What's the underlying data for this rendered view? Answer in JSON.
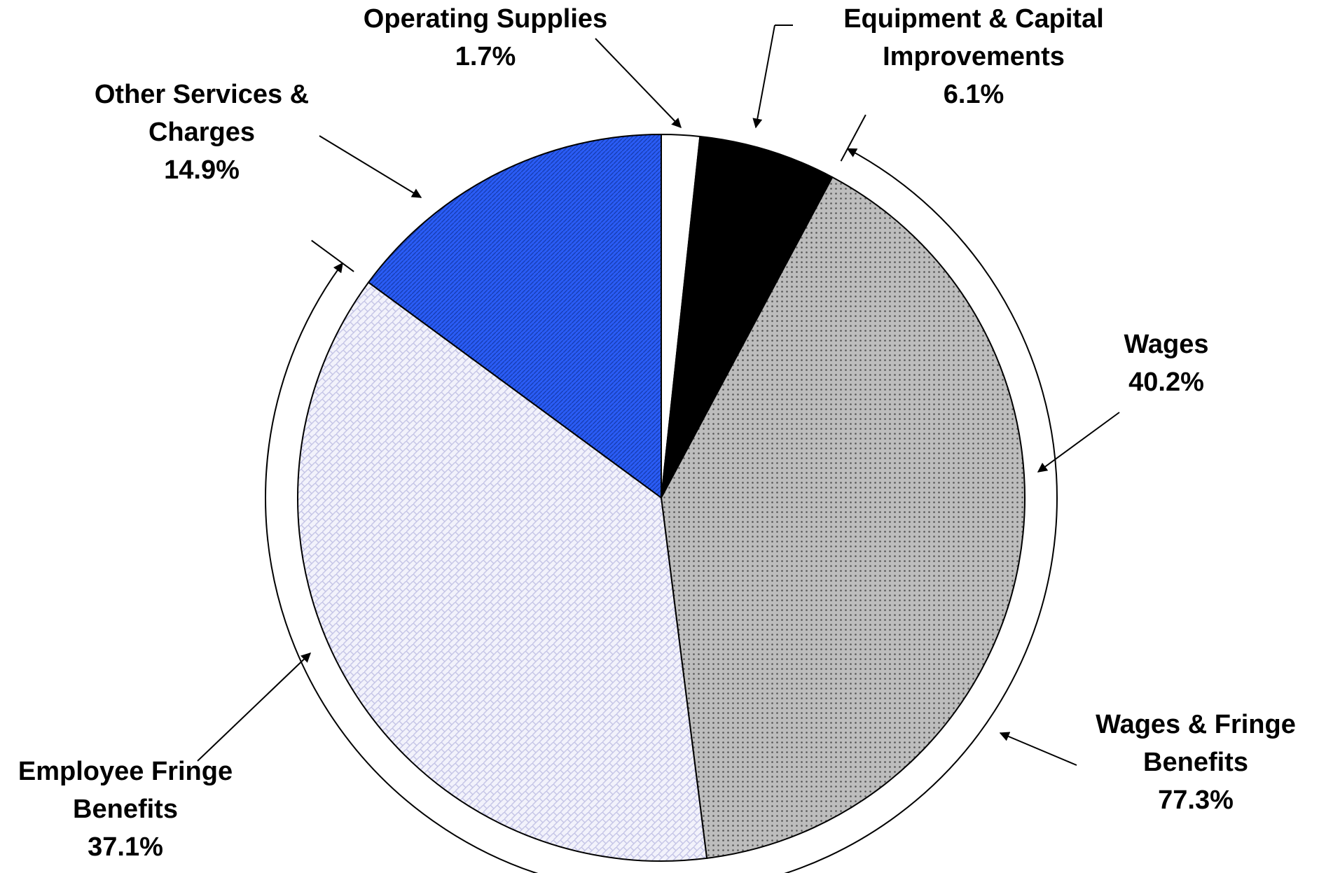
{
  "chart_data": {
    "type": "pie",
    "categories": [
      "Operating Supplies",
      "Equipment & Capital Improvements",
      "Wages",
      "Employee Fringe Benefits",
      "Other Services & Charges"
    ],
    "values": [
      1.7,
      6.1,
      40.2,
      37.1,
      14.9
    ],
    "value_labels": [
      "1.7%",
      "6.1%",
      "40.2%",
      "37.1%",
      "14.9%"
    ],
    "colors": [
      "#ffffff",
      "#000000",
      "#b8b8b8",
      "#eeeef8",
      "#2457f0"
    ],
    "annotation": {
      "text": "Wages & Fringe Benefits",
      "value": 77.3,
      "label": "77.3%"
    }
  }
}
